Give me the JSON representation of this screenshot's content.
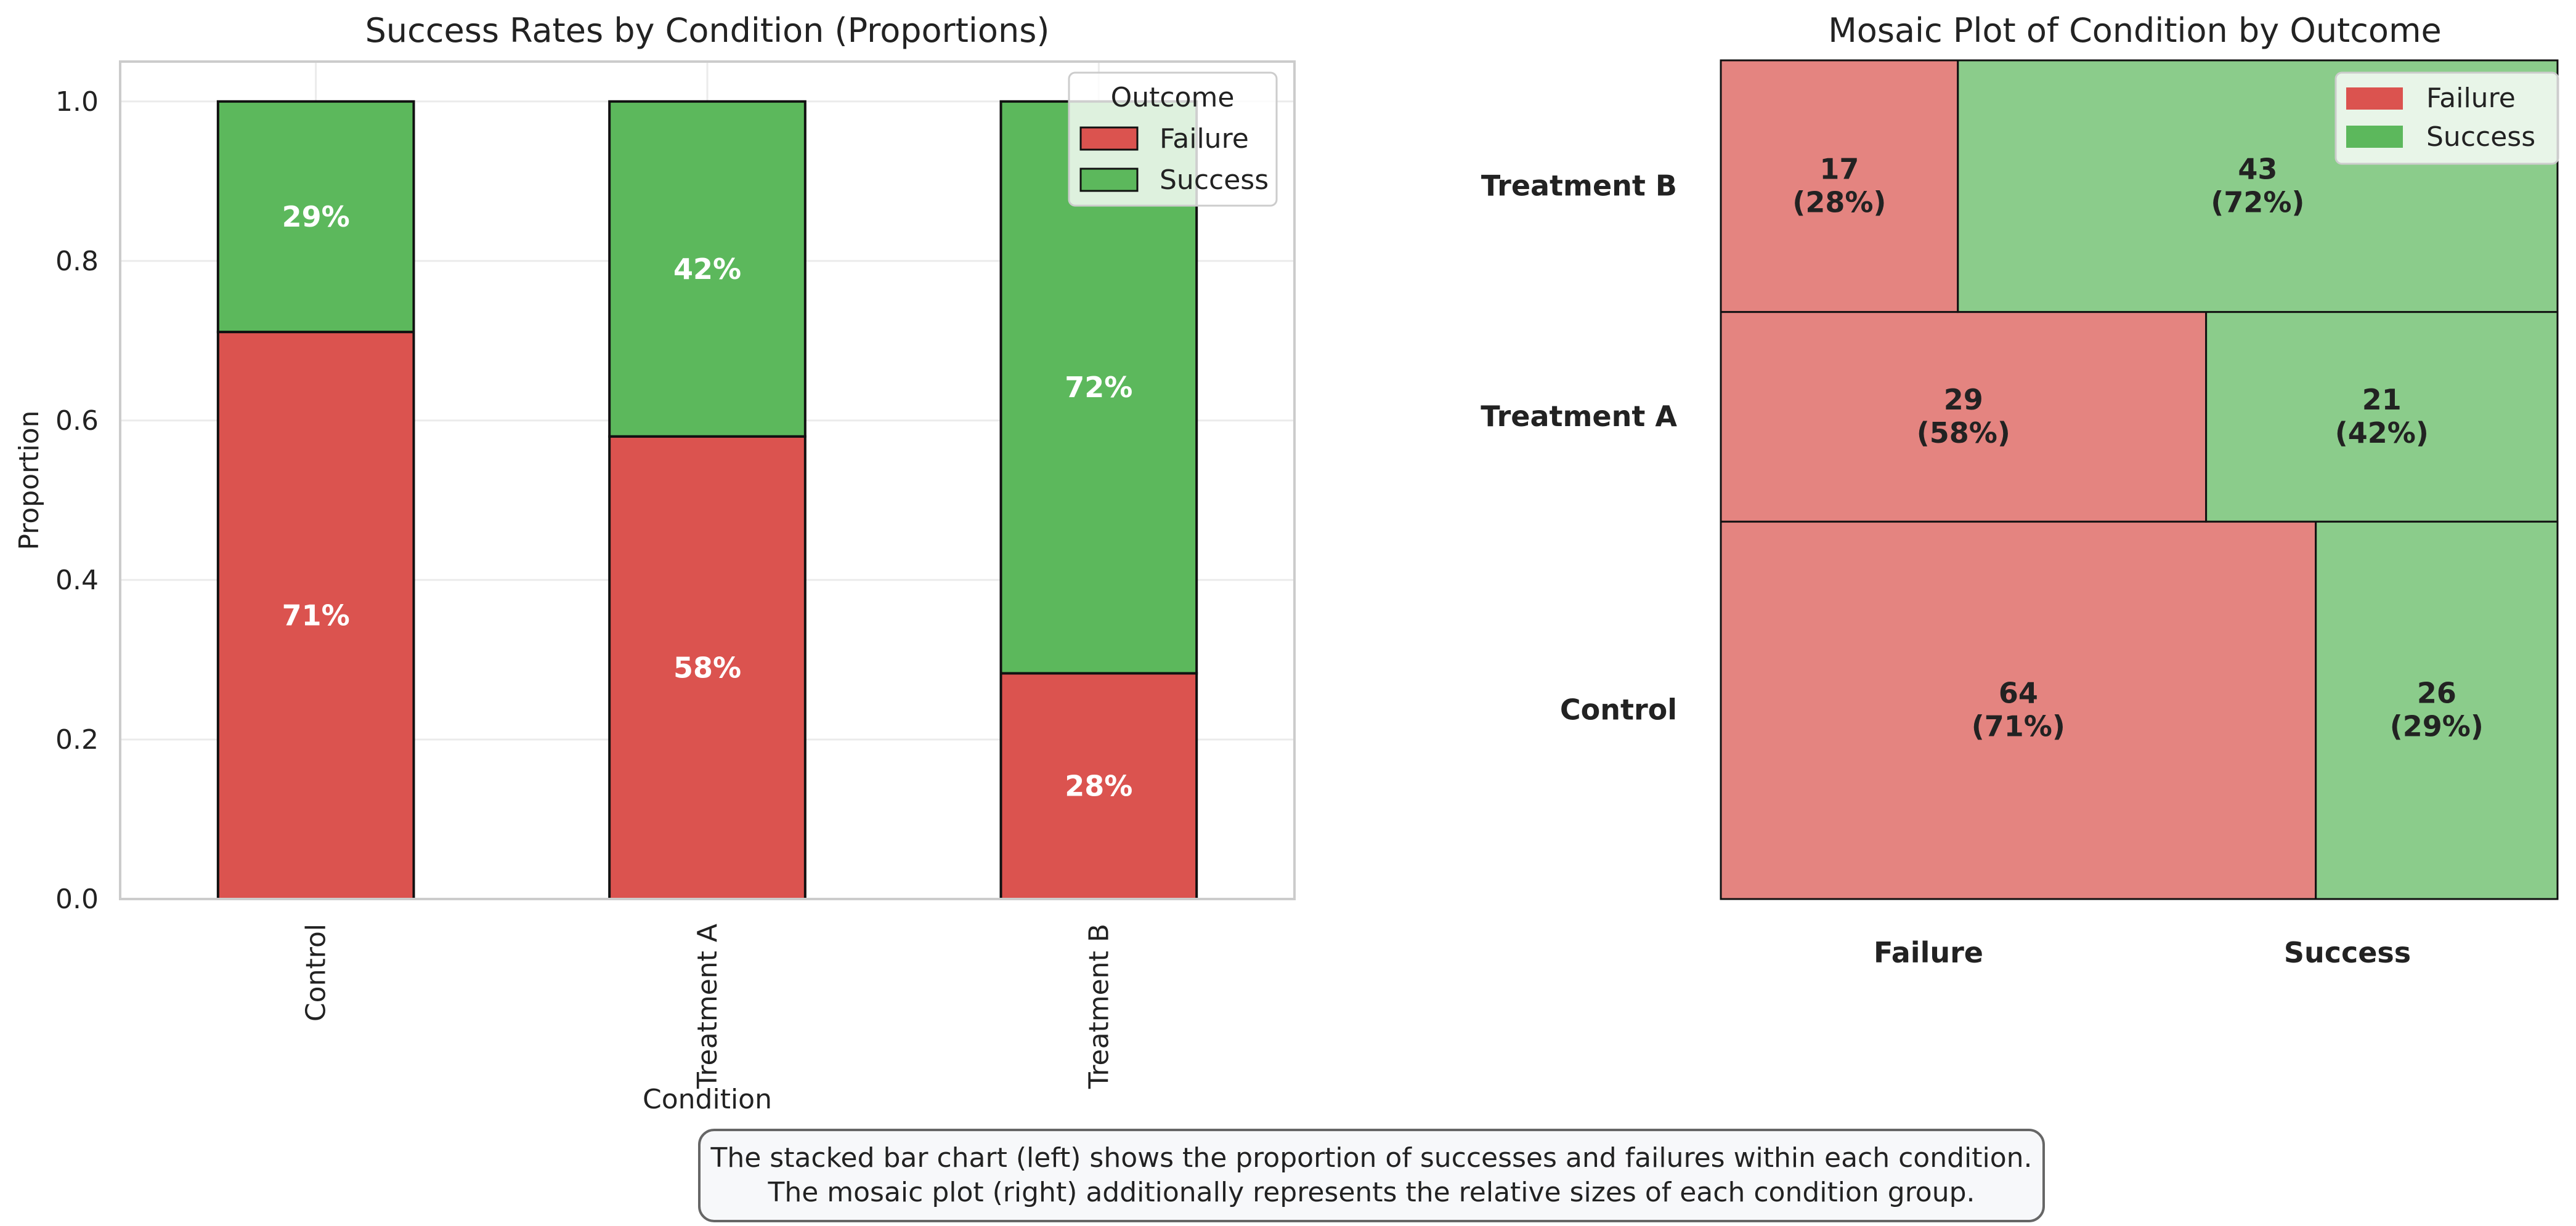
{
  "colors": {
    "failure": "#db534f",
    "success": "#5cb85c",
    "failure_mosaic": "#e48480",
    "success_mosaic": "#8bcc8b",
    "grid": "#ebebeb",
    "spine": "#cccccc",
    "text": "#222222"
  },
  "chart_data": [
    {
      "type": "bar",
      "stacked": true,
      "title": "Success Rates by Condition (Proportions)",
      "xlabel": "Condition",
      "ylabel": "Proportion",
      "categories": [
        "Control",
        "Treatment A",
        "Treatment B"
      ],
      "series": [
        {
          "name": "Failure",
          "values": [
            0.711,
            0.58,
            0.283
          ],
          "labels": [
            "71%",
            "58%",
            "28%"
          ]
        },
        {
          "name": "Success",
          "values": [
            0.289,
            0.42,
            0.717
          ],
          "labels": [
            "29%",
            "42%",
            "72%"
          ]
        }
      ],
      "ylim": [
        0,
        1.05
      ],
      "yticks": [
        "0.0",
        "0.2",
        "0.4",
        "0.6",
        "0.8",
        "1.0"
      ],
      "legend": {
        "title": "Outcome",
        "position": "top-right",
        "entries": [
          "Failure",
          "Success"
        ]
      },
      "grid": true
    },
    {
      "type": "mosaic",
      "title": "Mosaic Plot of Condition by Outcome",
      "rows": [
        "Control",
        "Treatment A",
        "Treatment B"
      ],
      "columns": [
        "Failure",
        "Success"
      ],
      "counts": [
        [
          64,
          26
        ],
        [
          29,
          21
        ],
        [
          17,
          43
        ]
      ],
      "percents": [
        [
          "(71%)",
          "(29%)"
        ],
        [
          "(58%)",
          "(42%)"
        ],
        [
          "(28%)",
          "(72%)"
        ]
      ],
      "legend": {
        "position": "top-right",
        "entries": [
          "Failure",
          "Success"
        ]
      }
    }
  ],
  "caption": {
    "line1": "The stacked bar chart (left) shows the proportion of successes and failures within each condition.",
    "line2": "The mosaic plot (right) additionally represents the relative sizes of each condition group."
  }
}
